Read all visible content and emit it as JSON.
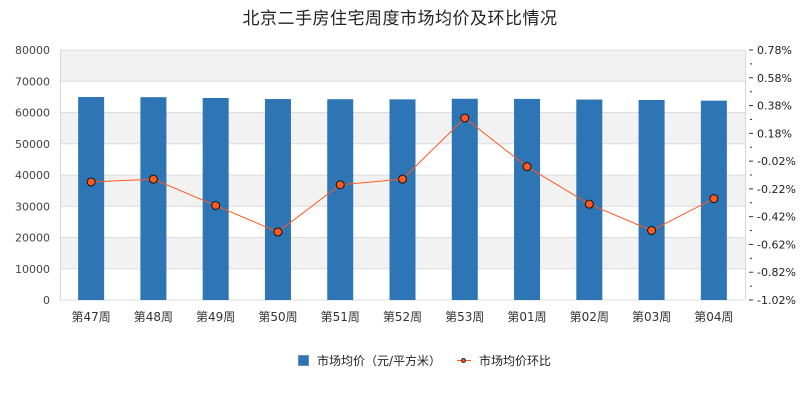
{
  "chart_data": {
    "type": "bar+line",
    "title": "北京二手房住宅周度市场均价及环比情况",
    "categories": [
      "第47周",
      "第48周",
      "第49周",
      "第50周",
      "第51周",
      "第52周",
      "第53周",
      "第01周",
      "第02周",
      "第03周",
      "第04周"
    ],
    "series": [
      {
        "name": "市场均价（元/平方米）",
        "type": "bar",
        "axis": "left",
        "color": "#2e75b6",
        "values": [
          64960,
          64900,
          64640,
          64300,
          64250,
          64200,
          64400,
          64350,
          64150,
          64000,
          63800
        ]
      },
      {
        "name": "市场均价环比",
        "type": "line",
        "axis": "right",
        "color": "#ff5a1f",
        "unit": "%",
        "values": [
          -0.17,
          -0.15,
          -0.34,
          -0.53,
          -0.19,
          -0.15,
          0.29,
          -0.06,
          -0.33,
          -0.52,
          -0.29
        ]
      }
    ],
    "left_axis": {
      "label": "",
      "ylim": [
        0,
        80000
      ],
      "ticks": [
        "0",
        "10000",
        "20000",
        "30000",
        "40000",
        "50000",
        "60000",
        "70000",
        "80000"
      ]
    },
    "right_axis": {
      "label": "",
      "ylim": [
        -1.02,
        0.78
      ],
      "ticks": [
        "-1.02%",
        "-0.82%",
        "-0.62%",
        "-0.42%",
        "-0.22%",
        "-0.02%",
        "0.18%",
        "0.38%",
        "0.58%",
        "0.78%"
      ]
    },
    "xlabel": "",
    "grid": "horizontal, alternating bands",
    "legend_position": "bottom"
  },
  "legend": {
    "bar_label": "市场均价（元/平方米）",
    "line_label": "市场均价环比"
  }
}
